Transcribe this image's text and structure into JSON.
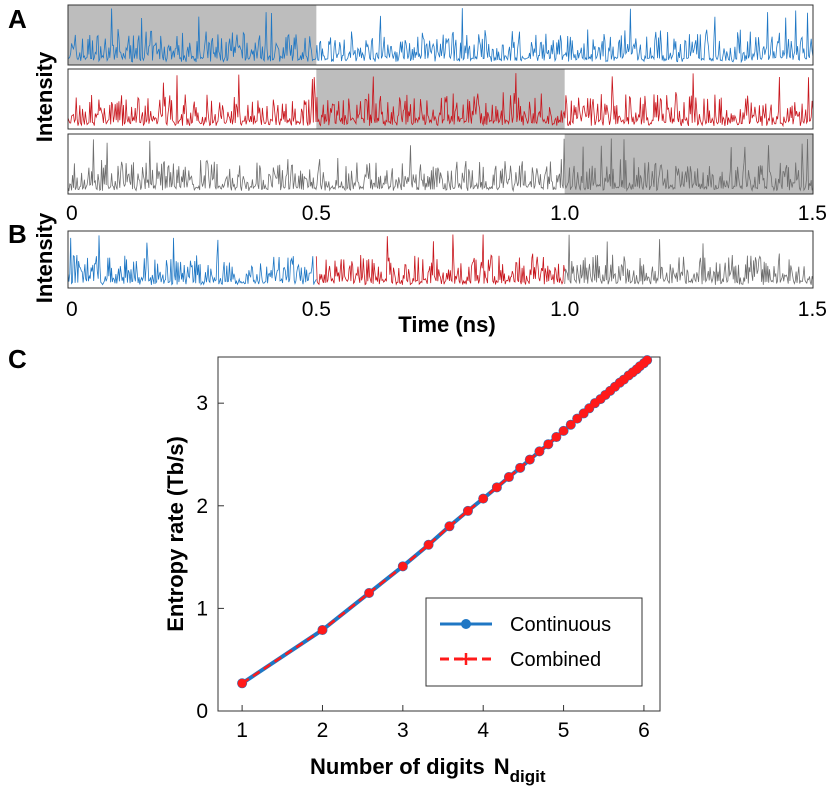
{
  "panels": {
    "a_label": "A",
    "b_label": "B",
    "c_label": "C"
  },
  "colors": {
    "blue": "#1f77c4",
    "red": "#c8161d",
    "gray": "#6e6e6e",
    "shade": "#bdbdbd",
    "continuous": "#1f77c4",
    "combined": "#ff1a1a"
  },
  "chart_data": [
    {
      "panel": "A",
      "type": "line",
      "ylabel": "Intensity",
      "xlim": [
        0,
        1.5
      ],
      "x_ticks": [
        "0",
        "0.5",
        "1.0",
        "1.5"
      ],
      "series": [
        {
          "color": "blue",
          "shaded_x": [
            0,
            0.5
          ]
        },
        {
          "color": "red",
          "shaded_x": [
            0.5,
            1.0
          ]
        },
        {
          "color": "gray",
          "shaded_x": [
            1.0,
            1.5
          ]
        }
      ]
    },
    {
      "panel": "B",
      "type": "line",
      "ylabel": "Intensity",
      "xlabel": "Time (ns)",
      "xlim": [
        0,
        1.5
      ],
      "x_ticks": [
        "0",
        "0.5",
        "1.0",
        "1.5"
      ],
      "segments": [
        {
          "color": "blue",
          "x": [
            0,
            0.5
          ]
        },
        {
          "color": "red",
          "x": [
            0.5,
            1.0
          ]
        },
        {
          "color": "gray",
          "x": [
            1.0,
            1.5
          ]
        }
      ]
    },
    {
      "panel": "C",
      "type": "line",
      "xlabel": "Number of digits",
      "xlabel_symbol": "N",
      "xlabel_sub": "digit",
      "ylabel": "Entropy rate (Tb/s)",
      "xlim": [
        0.7,
        6.2
      ],
      "ylim": [
        0,
        3.45
      ],
      "x_ticks": [
        1,
        2,
        3,
        4,
        5,
        6
      ],
      "y_ticks": [
        0,
        1,
        2,
        3
      ],
      "legend": "lower-right",
      "series": [
        {
          "name": "Continuous",
          "style": "solid-circle",
          "color": "continuous",
          "x": [
            1,
            2,
            2.58,
            3,
            3.32,
            3.58,
            3.81,
            4,
            4.17,
            4.32,
            4.46,
            4.58,
            4.7,
            4.81,
            4.91,
            5,
            5.09,
            5.17,
            5.25,
            5.32,
            5.39,
            5.46,
            5.52,
            5.58,
            5.64,
            5.7,
            5.75,
            5.81,
            5.86,
            5.91,
            5.95,
            6,
            6.04
          ],
          "values": [
            0.27,
            0.79,
            1.15,
            1.41,
            1.62,
            1.8,
            1.95,
            2.07,
            2.18,
            2.28,
            2.37,
            2.45,
            2.53,
            2.6,
            2.67,
            2.73,
            2.79,
            2.85,
            2.9,
            2.95,
            3.0,
            3.04,
            3.08,
            3.12,
            3.16,
            3.2,
            3.23,
            3.27,
            3.3,
            3.33,
            3.36,
            3.39,
            3.42
          ]
        },
        {
          "name": "Combined",
          "style": "dashed-plus",
          "color": "combined",
          "x": [
            1,
            2,
            2.58,
            3,
            3.32,
            3.58,
            3.81,
            4,
            4.17,
            4.32,
            4.46,
            4.58,
            4.7,
            4.81,
            4.91,
            5,
            5.09,
            5.17,
            5.25,
            5.32,
            5.39,
            5.46,
            5.52,
            5.58,
            5.64,
            5.7,
            5.75,
            5.81,
            5.86,
            5.91,
            5.95,
            6,
            6.04
          ],
          "values": [
            0.27,
            0.79,
            1.15,
            1.41,
            1.62,
            1.8,
            1.95,
            2.07,
            2.18,
            2.28,
            2.37,
            2.45,
            2.53,
            2.6,
            2.67,
            2.73,
            2.79,
            2.85,
            2.9,
            2.95,
            3.0,
            3.04,
            3.08,
            3.12,
            3.16,
            3.2,
            3.23,
            3.27,
            3.3,
            3.33,
            3.36,
            3.39,
            3.42
          ]
        }
      ]
    }
  ]
}
